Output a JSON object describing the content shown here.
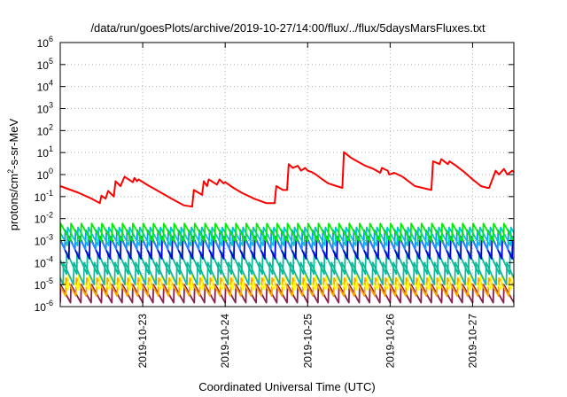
{
  "chart_data": {
    "type": "line",
    "title": "/data/run/goesPlots/archive/2019-10-27/14:00/flux/../flux/5daysMarsFluxes.txt",
    "xlabel": "Coordinated Universal Time (UTC)",
    "ylabel": "protons/cm2-s-sr-MeV",
    "ylabel_base": "protons/cm",
    "ylabel_sup": "2",
    "ylabel_rest": "-s-sr-MeV",
    "y_scale": "log",
    "ylim": [
      1e-06,
      1000000.0
    ],
    "xlim": [
      0,
      5.5
    ],
    "grid": true,
    "x_ticks": [
      {
        "x": 1,
        "label": "2019-10-23"
      },
      {
        "x": 2,
        "label": "2019-10-24"
      },
      {
        "x": 3,
        "label": "2019-10-25"
      },
      {
        "x": 4,
        "label": "2019-10-26"
      },
      {
        "x": 5,
        "label": "2019-10-27"
      }
    ],
    "y_ticks": [
      {
        "exp": -6,
        "base": "10",
        "sup": "-6"
      },
      {
        "exp": -5,
        "base": "10",
        "sup": "-5"
      },
      {
        "exp": -4,
        "base": "10",
        "sup": "-4"
      },
      {
        "exp": -3,
        "base": "10",
        "sup": "-3"
      },
      {
        "exp": -2,
        "base": "10",
        "sup": "-2"
      },
      {
        "exp": -1,
        "base": "10",
        "sup": "-1"
      },
      {
        "exp": 0,
        "base": "10",
        "sup": "0"
      },
      {
        "exp": 1,
        "base": "10",
        "sup": "1"
      },
      {
        "exp": 2,
        "base": "10",
        "sup": "2"
      },
      {
        "exp": 3,
        "base": "10",
        "sup": "3"
      },
      {
        "exp": 4,
        "base": "10",
        "sup": "4"
      },
      {
        "exp": 5,
        "base": "10",
        "sup": "5"
      },
      {
        "exp": 6,
        "base": "10",
        "sup": "6"
      }
    ],
    "series": [
      {
        "color": "#ff0000",
        "x": [
          0.0,
          0.22,
          0.38,
          0.48,
          0.5,
          0.55,
          0.58,
          0.65,
          0.67,
          0.73,
          0.78,
          0.88,
          0.9,
          0.93,
          0.95,
          1.08,
          1.12,
          1.35,
          1.5,
          1.6,
          1.62,
          1.72,
          1.74,
          1.78,
          1.8,
          1.9,
          1.93,
          1.98,
          2.0,
          2.1,
          2.2,
          2.35,
          2.5,
          2.6,
          2.62,
          2.7,
          2.75,
          2.77,
          2.82,
          2.88,
          2.92,
          2.97,
          3.0,
          3.05,
          3.1,
          3.18,
          3.25,
          3.35,
          3.42,
          3.44,
          3.52,
          3.6,
          3.7,
          3.8,
          3.88,
          3.9,
          3.97,
          3.99,
          4.05,
          4.15,
          4.3,
          4.5,
          4.52,
          4.6,
          4.62,
          4.7,
          4.72,
          4.8,
          4.9,
          5.0,
          5.1,
          5.18,
          5.2,
          5.28,
          5.32,
          5.38,
          5.42,
          5.48,
          5.5
        ],
        "y": [
          0.3,
          0.15,
          0.08,
          0.05,
          0.11,
          0.08,
          0.18,
          0.1,
          0.5,
          0.3,
          0.8,
          0.45,
          0.7,
          0.5,
          0.6,
          0.3,
          0.25,
          0.08,
          0.04,
          0.035,
          0.2,
          0.12,
          0.5,
          0.3,
          0.6,
          0.35,
          0.6,
          0.4,
          0.45,
          0.25,
          0.15,
          0.08,
          0.05,
          0.05,
          0.3,
          0.2,
          0.2,
          3.0,
          2.0,
          2.5,
          1.5,
          2.0,
          1.5,
          1.3,
          1.0,
          0.6,
          0.4,
          0.3,
          0.25,
          10.5,
          6.0,
          4.0,
          2.5,
          1.8,
          1.2,
          2.0,
          1.5,
          1.0,
          1.2,
          0.8,
          0.3,
          0.2,
          4.0,
          3.0,
          5.0,
          3.0,
          4.0,
          2.5,
          1.3,
          0.6,
          0.3,
          0.25,
          0.25,
          1.5,
          1.0,
          1.8,
          1.0,
          1.5,
          1.3
        ]
      },
      {
        "color": "#00ee00",
        "lo": 0.0009,
        "hi": 0.006,
        "period": 0.125,
        "phase": 0.0
      },
      {
        "color": "#00c8c8",
        "lo": 0.0006,
        "hi": 0.004,
        "period": 0.125,
        "phase": 0.04
      },
      {
        "color": "#1f8cff",
        "lo": 0.0004,
        "hi": 0.003,
        "period": 0.125,
        "phase": 0.07
      },
      {
        "color": "#0000dd",
        "lo": 0.00015,
        "hi": 0.0015,
        "period": 0.125,
        "phase": 0.02
      },
      {
        "color": "#00c090",
        "lo": 3e-05,
        "hi": 0.0003,
        "period": 0.125,
        "phase": 0.05
      },
      {
        "color": "#20b2aa",
        "lo": 1e-05,
        "hi": 0.0001,
        "period": 0.125,
        "phase": 0.09
      },
      {
        "color": "#ffff00",
        "lo": 6e-06,
        "hi": 3e-05,
        "period": 0.125,
        "phase": 0.03
      },
      {
        "color": "#ffa500",
        "lo": 3e-06,
        "hi": 2e-05,
        "period": 0.125,
        "phase": 0.06
      },
      {
        "color": "#8b2252",
        "lo": 1.5e-06,
        "hi": 1e-05,
        "period": 0.125,
        "phase": 0.0
      }
    ]
  }
}
